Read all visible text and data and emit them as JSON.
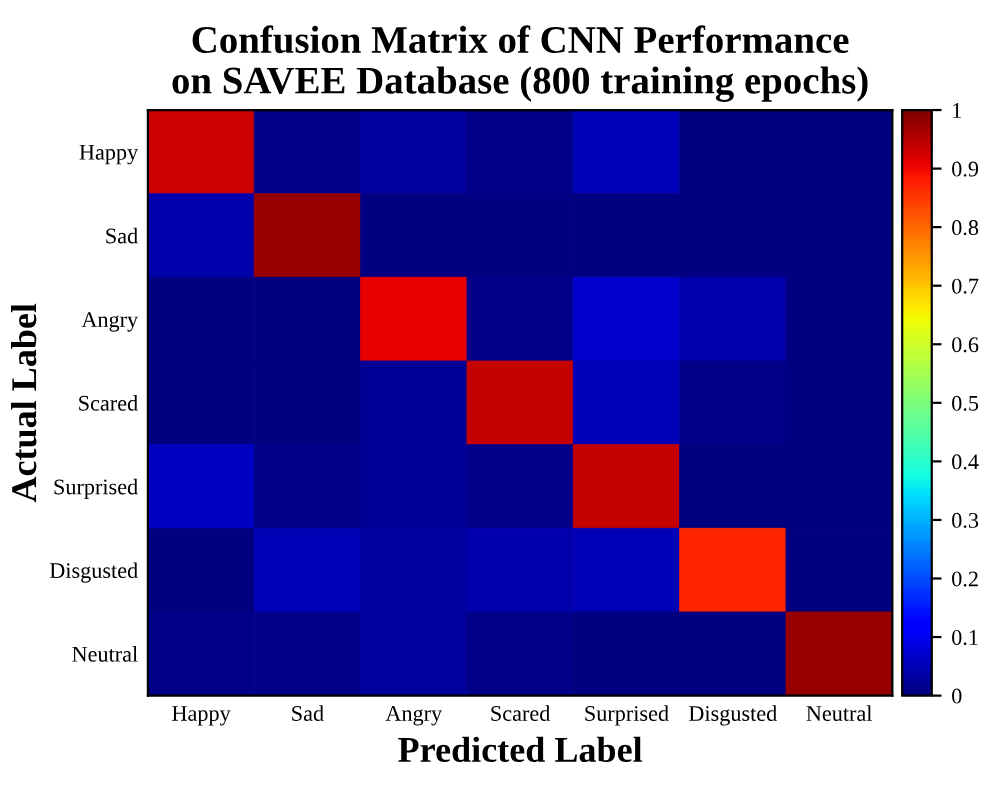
{
  "chart_data": {
    "type": "heatmap",
    "title": "Confusion Matrix of CNN Performance\non SAVEE Database (800 training epochs)",
    "xlabel": "Predicted Label",
    "ylabel": "Actual Label",
    "categories": [
      "Happy",
      "Sad",
      "Angry",
      "Scared",
      "Surprised",
      "Disgusted",
      "Neutral"
    ],
    "y_categories": [
      "Happy",
      "Sad",
      "Angry",
      "Scared",
      "Surprised",
      "Disgusted",
      "Neutral"
    ],
    "cells": [
      [
        0.93,
        0.01,
        0.03,
        0.01,
        0.05,
        0,
        0
      ],
      [
        0.04,
        0.98,
        0,
        0,
        0,
        0,
        0
      ],
      [
        0,
        0,
        0.91,
        0.01,
        0.07,
        0.04,
        0
      ],
      [
        0,
        0,
        0.02,
        0.94,
        0.05,
        0.01,
        0
      ],
      [
        0.06,
        0.01,
        0.02,
        0.01,
        0.94,
        0,
        0
      ],
      [
        0,
        0.05,
        0.03,
        0.04,
        0.05,
        0.87,
        0
      ],
      [
        0.01,
        0.01,
        0.03,
        0.01,
        0,
        0,
        0.98
      ]
    ],
    "clim": [
      0,
      1
    ],
    "cticks": [
      0,
      0.1,
      0.2,
      0.3,
      0.4,
      0.5,
      0.6,
      0.7,
      0.8,
      0.9,
      1
    ],
    "grid": false
  }
}
